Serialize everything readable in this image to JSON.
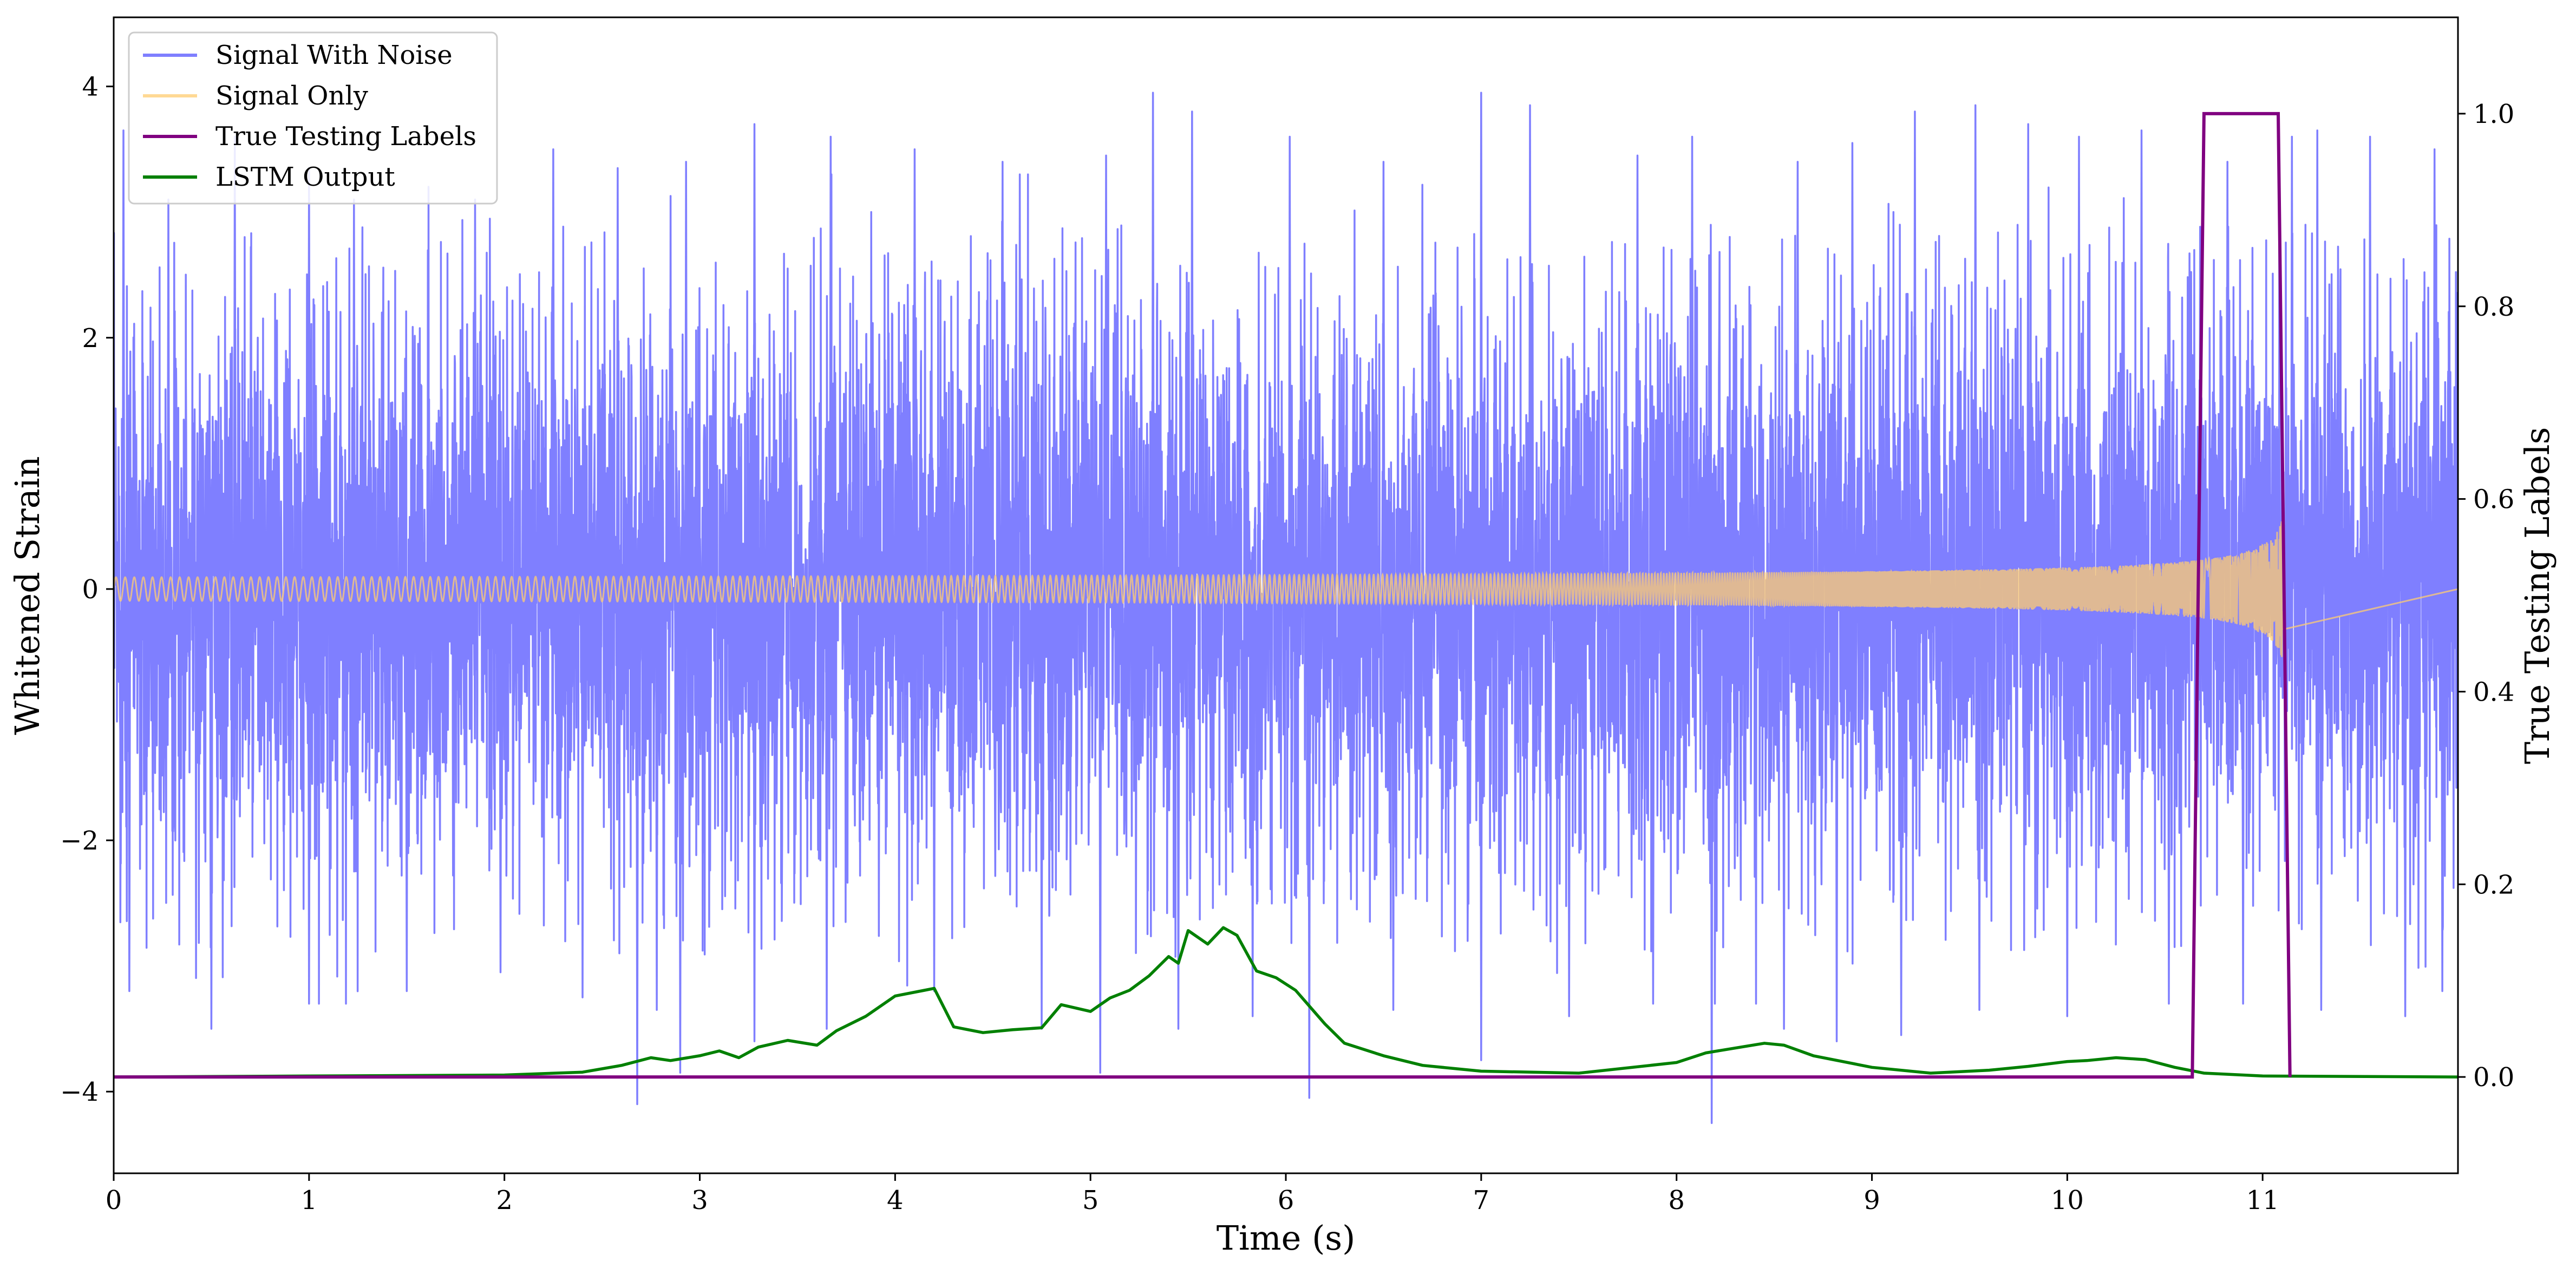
{
  "chart_data": {
    "type": "line",
    "xlabel": "Time (s)",
    "ylabel": "Whitened Strain",
    "ylabel_right": "True Testing Labels",
    "xlim": [
      0,
      12
    ],
    "ylim": [
      -4.65,
      4.55
    ],
    "ylim_right": [
      -0.1,
      1.1
    ],
    "xticks": [
      0,
      1,
      2,
      3,
      4,
      5,
      6,
      7,
      8,
      9,
      10,
      11
    ],
    "xtick_labels": [
      "0",
      "1",
      "2",
      "3",
      "4",
      "5",
      "6",
      "7",
      "8",
      "9",
      "10",
      "11"
    ],
    "yticks": [
      -4,
      -2,
      0,
      2,
      4
    ],
    "ytick_labels": [
      "−4",
      "−2",
      "0",
      "2",
      "4"
    ],
    "yticks_right": [
      0.0,
      0.2,
      0.4,
      0.6,
      0.8,
      1.0
    ],
    "ytick_labels_right": [
      "0.0",
      "0.2",
      "0.4",
      "0.6",
      "0.8",
      "1.0"
    ],
    "legend_position": "upper-left",
    "grid": false,
    "series": [
      {
        "name": "Signal With Noise",
        "axis": "left",
        "color": "#7f7fff",
        "description": "dense noisy strain, roughly within ±2 with spikes to about ±4",
        "noise_std": 1.0,
        "peaks_high": [
          [
            0.05,
            3.65
          ],
          [
            0.28,
            3.1
          ],
          [
            0.62,
            3.6
          ],
          [
            1.0,
            3.35
          ],
          [
            1.23,
            3.1
          ],
          [
            1.85,
            3.1
          ],
          [
            2.25,
            3.5
          ],
          [
            2.58,
            3.35
          ],
          [
            2.93,
            3.4
          ],
          [
            3.28,
            3.7
          ],
          [
            3.67,
            3.6
          ],
          [
            4.1,
            3.5
          ],
          [
            4.55,
            3.4
          ],
          [
            5.08,
            3.45
          ],
          [
            5.32,
            3.95
          ],
          [
            5.52,
            3.8
          ],
          [
            6.02,
            3.6
          ],
          [
            6.5,
            3.4
          ],
          [
            7.0,
            3.95
          ],
          [
            7.25,
            3.85
          ],
          [
            7.8,
            3.45
          ],
          [
            8.08,
            3.6
          ],
          [
            8.62,
            3.4
          ],
          [
            8.9,
            3.55
          ],
          [
            9.22,
            3.8
          ],
          [
            9.53,
            3.85
          ],
          [
            9.8,
            3.7
          ],
          [
            10.06,
            3.6
          ],
          [
            10.38,
            3.65
          ],
          [
            10.82,
            3.4
          ],
          [
            11.15,
            3.6
          ],
          [
            11.28,
            3.65
          ],
          [
            11.55,
            3.6
          ],
          [
            11.88,
            3.5
          ]
        ],
        "peaks_low": [
          [
            0.08,
            -3.2
          ],
          [
            0.5,
            -3.5
          ],
          [
            1.0,
            -3.3
          ],
          [
            1.5,
            -3.2
          ],
          [
            1.98,
            -3.05
          ],
          [
            2.4,
            -3.25
          ],
          [
            2.68,
            -4.1
          ],
          [
            2.78,
            -3.35
          ],
          [
            2.9,
            -3.85
          ],
          [
            3.28,
            -3.6
          ],
          [
            3.65,
            -3.5
          ],
          [
            4.2,
            -3.2
          ],
          [
            4.75,
            -3.5
          ],
          [
            5.05,
            -3.85
          ],
          [
            5.45,
            -3.5
          ],
          [
            5.83,
            -3.4
          ],
          [
            6.12,
            -4.05
          ],
          [
            6.55,
            -3.35
          ],
          [
            7.0,
            -3.75
          ],
          [
            7.45,
            -3.4
          ],
          [
            7.88,
            -3.3
          ],
          [
            8.18,
            -4.25
          ],
          [
            8.55,
            -3.5
          ],
          [
            8.82,
            -3.6
          ],
          [
            9.15,
            -3.55
          ],
          [
            9.55,
            -3.35
          ],
          [
            10.0,
            -3.4
          ],
          [
            10.52,
            -3.3
          ],
          [
            10.9,
            -3.3
          ],
          [
            11.3,
            -3.35
          ],
          [
            11.73,
            -3.4
          ],
          [
            11.92,
            -3.2
          ]
        ]
      },
      {
        "name": "Signal Only",
        "axis": "left",
        "color": "#ffcc70",
        "description": "chirp waveform; amplitude grows from ~0.05 to ~0.55 and ends at the merger",
        "t_start": 0.0,
        "t_merger": 11.1,
        "amplitude_start": 0.05,
        "amplitude_end": 0.55
      },
      {
        "name": "True Testing Labels",
        "axis": "right",
        "color": "#800080",
        "x": [
          0.0,
          10.64,
          10.7,
          11.08,
          11.14,
          11.14
        ],
        "y": [
          0.0,
          0.0,
          1.0,
          1.0,
          0.0,
          0.0
        ]
      },
      {
        "name": "LSTM Output",
        "axis": "right",
        "color": "#008000",
        "x": [
          0.0,
          1.0,
          2.0,
          2.4,
          2.6,
          2.75,
          2.85,
          3.0,
          3.1,
          3.2,
          3.3,
          3.45,
          3.6,
          3.7,
          3.85,
          4.0,
          4.15,
          4.2,
          4.3,
          4.45,
          4.6,
          4.75,
          4.85,
          5.0,
          5.1,
          5.2,
          5.3,
          5.4,
          5.45,
          5.5,
          5.6,
          5.68,
          5.75,
          5.85,
          5.95,
          6.05,
          6.2,
          6.3,
          6.5,
          6.7,
          7.0,
          7.5,
          8.0,
          8.15,
          8.3,
          8.45,
          8.55,
          8.7,
          9.0,
          9.3,
          9.6,
          9.8,
          10.0,
          10.1,
          10.25,
          10.4,
          10.55,
          10.7,
          11.0,
          12.0
        ],
        "y": [
          0.0,
          0.001,
          0.002,
          0.005,
          0.012,
          0.02,
          0.017,
          0.022,
          0.027,
          0.02,
          0.031,
          0.038,
          0.033,
          0.048,
          0.063,
          0.084,
          0.09,
          0.092,
          0.052,
          0.046,
          0.049,
          0.051,
          0.075,
          0.068,
          0.082,
          0.09,
          0.105,
          0.125,
          0.118,
          0.152,
          0.138,
          0.155,
          0.147,
          0.11,
          0.103,
          0.09,
          0.055,
          0.035,
          0.022,
          0.012,
          0.006,
          0.004,
          0.015,
          0.025,
          0.03,
          0.035,
          0.033,
          0.022,
          0.01,
          0.004,
          0.007,
          0.011,
          0.016,
          0.017,
          0.02,
          0.018,
          0.01,
          0.004,
          0.001,
          0.0
        ]
      }
    ]
  }
}
